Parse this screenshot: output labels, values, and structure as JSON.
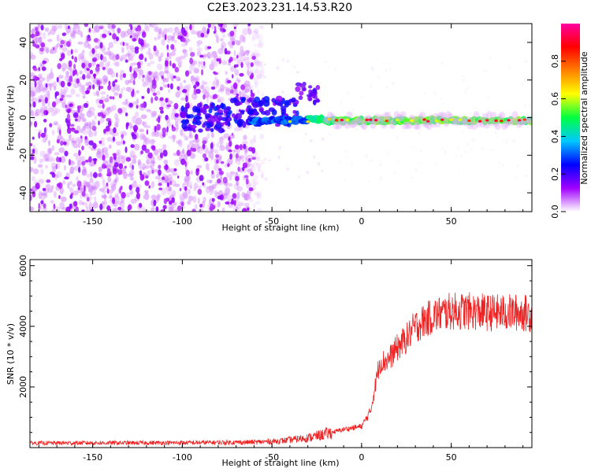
{
  "title": "C2E3.2023.231.14.53.R20",
  "chart_data": [
    {
      "type": "heatmap",
      "xlabel": "Height of straight line (km)",
      "ylabel": "Frequency (Hz)",
      "xlim": [
        -185,
        95
      ],
      "ylim": [
        -50,
        50
      ],
      "xticks": [
        -150,
        -100,
        -50,
        0,
        50
      ],
      "yticks": [
        -40,
        -20,
        0,
        20,
        40
      ],
      "colorbar": {
        "label": "Normalized spectral amplitude",
        "range": [
          0,
          1
        ],
        "ticks": [
          "0.0",
          "0.2",
          "0.4",
          "0.6",
          "0.8"
        ],
        "colors": [
          "#ffffff",
          "#a000ff",
          "#0000ff",
          "#00c8ff",
          "#00ff40",
          "#ffff00",
          "#ff8000",
          "#ff0000",
          "#ff00a0"
        ]
      },
      "features": {
        "noise_region_x": [
          -185,
          -60
        ],
        "signal_band_center_hz": 0,
        "signal_band_start_x": -30
      }
    },
    {
      "type": "line",
      "xlabel": "Height of straight line (km)",
      "ylabel": "SNR (10 * v/v)",
      "xlim": [
        -185,
        95
      ],
      "ylim": [
        0,
        6200
      ],
      "xticks": [
        -150,
        -100,
        -50,
        0,
        50
      ],
      "yticks": [
        2000,
        4000,
        6000
      ],
      "series": [
        {
          "color": "#ee2222",
          "trend": [
            [
              -185,
              150
            ],
            [
              -100,
              160
            ],
            [
              -60,
              180
            ],
            [
              -45,
              220
            ],
            [
              -30,
              320
            ],
            [
              -20,
              450
            ],
            [
              -10,
              600
            ],
            [
              0,
              700
            ],
            [
              5,
              1200
            ],
            [
              10,
              2800
            ],
            [
              15,
              2900
            ],
            [
              20,
              3300
            ],
            [
              25,
              3600
            ],
            [
              30,
              4000
            ],
            [
              40,
              4350
            ],
            [
              50,
              4500
            ],
            [
              60,
              4500
            ],
            [
              70,
              4450
            ],
            [
              80,
              4450
            ],
            [
              90,
              4450
            ],
            [
              95,
              4400
            ]
          ]
        }
      ]
    }
  ]
}
